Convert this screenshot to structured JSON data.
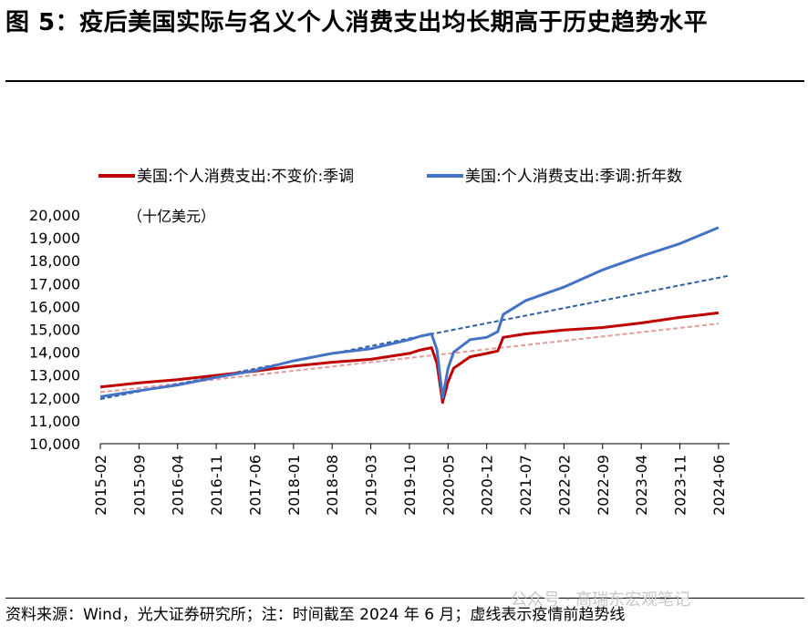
{
  "title": "图 5：疫后美国实际与名义个人消费支出均长期高于历史趋势水平",
  "source": "资料来源：Wind，光大证券研究所；注：时间截至 2024 年 6 月；虚线表示疫情前趋势线",
  "watermark": "公众号 · 高瑞东宏观笔记",
  "chart_data": {
    "type": "line",
    "unit": "（十亿美元）",
    "ylim": [
      10000,
      20000
    ],
    "yticks": [
      "10,000",
      "11,000",
      "12,000",
      "13,000",
      "14,000",
      "15,000",
      "16,000",
      "17,000",
      "18,000",
      "19,000",
      "20,000"
    ],
    "xticks": [
      "2015-02",
      "2015-09",
      "2016-04",
      "2016-11",
      "2017-06",
      "2018-01",
      "2018-08",
      "2019-03",
      "2019-10",
      "2020-05",
      "2020-12",
      "2021-07",
      "2022-02",
      "2022-09",
      "2023-04",
      "2023-11",
      "2024-06"
    ],
    "xrange": [
      "2015-02",
      "2024-08"
    ],
    "legend_placement": "top",
    "series": [
      {
        "name": "美国:个人消费支出:不变价:季调",
        "color": "#c00000",
        "points": [
          [
            "2015-02",
            12480
          ],
          [
            "2015-09",
            12660
          ],
          [
            "2016-04",
            12800
          ],
          [
            "2016-11",
            12990
          ],
          [
            "2017-06",
            13170
          ],
          [
            "2018-01",
            13390
          ],
          [
            "2018-08",
            13560
          ],
          [
            "2019-03",
            13690
          ],
          [
            "2019-10",
            13950
          ],
          [
            "2019-12",
            14100
          ],
          [
            "2020-02",
            14200
          ],
          [
            "2020-03",
            13500
          ],
          [
            "2020-04",
            11800
          ],
          [
            "2020-05",
            12700
          ],
          [
            "2020-06",
            13300
          ],
          [
            "2020-09",
            13800
          ],
          [
            "2020-12",
            13950
          ],
          [
            "2021-02",
            14050
          ],
          [
            "2021-03",
            14650
          ],
          [
            "2021-07",
            14800
          ],
          [
            "2022-02",
            14970
          ],
          [
            "2022-09",
            15080
          ],
          [
            "2023-04",
            15280
          ],
          [
            "2023-11",
            15520
          ],
          [
            "2024-06",
            15720
          ]
        ]
      },
      {
        "name": "美国:个人消费支出:季调:折年数",
        "color": "#4472c4",
        "points": [
          [
            "2015-02",
            12050
          ],
          [
            "2015-09",
            12320
          ],
          [
            "2016-04",
            12560
          ],
          [
            "2016-11",
            12900
          ],
          [
            "2017-06",
            13200
          ],
          [
            "2018-01",
            13620
          ],
          [
            "2018-08",
            13950
          ],
          [
            "2019-03",
            14150
          ],
          [
            "2019-10",
            14550
          ],
          [
            "2019-12",
            14700
          ],
          [
            "2020-02",
            14800
          ],
          [
            "2020-03",
            14100
          ],
          [
            "2020-04",
            12000
          ],
          [
            "2020-05",
            13300
          ],
          [
            "2020-06",
            14000
          ],
          [
            "2020-09",
            14550
          ],
          [
            "2020-12",
            14650
          ],
          [
            "2021-02",
            14900
          ],
          [
            "2021-03",
            15650
          ],
          [
            "2021-07",
            16250
          ],
          [
            "2022-02",
            16850
          ],
          [
            "2022-09",
            17600
          ],
          [
            "2023-04",
            18200
          ],
          [
            "2023-11",
            18750
          ],
          [
            "2024-06",
            19450
          ]
        ]
      }
    ],
    "trend_lines": [
      {
        "color": "#e39a9a",
        "from": [
          "2015-02",
          12250
        ],
        "to": [
          "2024-06",
          15250
        ]
      },
      {
        "color": "#2e5fa3",
        "from": [
          "2015-02",
          11950
        ],
        "to": [
          "2024-08",
          17350
        ]
      }
    ]
  }
}
